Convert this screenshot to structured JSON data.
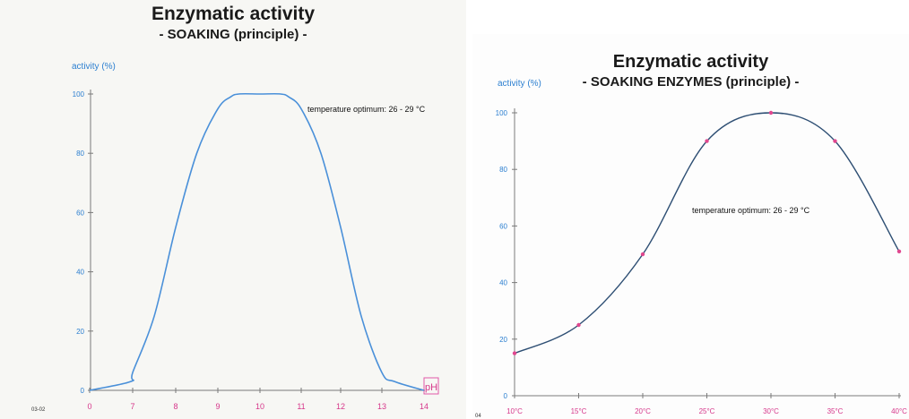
{
  "chart_data": [
    {
      "type": "line",
      "title": "Enzymatic activity",
      "subtitle": "- SOAKING (principle) -",
      "ylabel": "activity (%)",
      "xlabel": "pH",
      "annotation": "temperature optimum: 26 - 29 °C",
      "footnote": "03-02",
      "x_ticks": [
        "0",
        "7",
        "8",
        "9",
        "10",
        "11",
        "12",
        "13",
        "14"
      ],
      "y_ticks": [
        0,
        20,
        40,
        60,
        80,
        100
      ],
      "ylim": [
        0,
        100
      ],
      "grid": false,
      "series": [
        {
          "x": [
            0,
            6.7,
            7,
            7.5,
            8,
            8.5,
            9,
            9.3,
            9.5,
            10,
            10.5,
            10.7,
            11,
            11.5,
            12,
            12.5,
            13,
            13.3,
            14
          ],
          "y": [
            0,
            3,
            6,
            25,
            55,
            80,
            95,
            99,
            100,
            100,
            100,
            99,
            95,
            80,
            55,
            25,
            6,
            3,
            0
          ]
        }
      ],
      "colors": {
        "line": "#4a90d9",
        "axis_labels": "#2c7fd0",
        "x_tick_labels": "#d6368a"
      }
    },
    {
      "type": "line",
      "title": "Enzymatic activity",
      "subtitle": "- SOAKING ENZYMES (principle) -",
      "ylabel": "activity (%)",
      "annotation": "temperature optimum: 26 - 29 °C",
      "footnote": "04",
      "categories": [
        "10°C",
        "15°C",
        "20°C",
        "25°C",
        "30°C",
        "35°C",
        "40°C"
      ],
      "values": [
        15,
        25,
        50,
        90,
        100,
        90,
        51
      ],
      "y_ticks": [
        0,
        20,
        40,
        60,
        80,
        100
      ],
      "ylim": [
        0,
        100
      ],
      "grid": false,
      "colors": {
        "line": "#2d4e73",
        "marker": "#e0478f",
        "axis_labels": "#2c7fd0",
        "x_tick_labels": "#d6368a"
      }
    }
  ]
}
